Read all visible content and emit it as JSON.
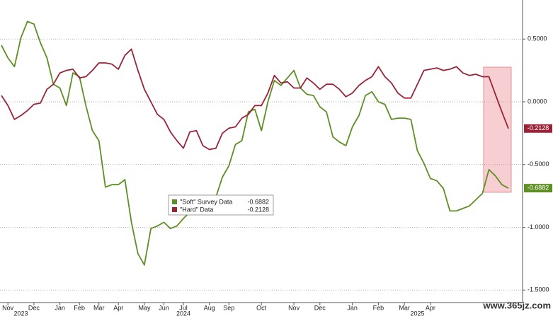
{
  "chart_data": {
    "type": "line",
    "categories": [
      null,
      "Nov",
      null,
      null,
      null,
      "Dec",
      null,
      null,
      null,
      "Jan",
      null,
      null,
      "Feb",
      null,
      null,
      "Mar",
      null,
      null,
      "Apr",
      null,
      null,
      null,
      "May",
      null,
      null,
      "Jun",
      null,
      null,
      "Jul",
      null,
      null,
      null,
      "Aug",
      null,
      null,
      "Sep",
      null,
      null,
      null,
      null,
      "Oct",
      null,
      null,
      null,
      null,
      "Nov",
      null,
      null,
      null,
      "Dec",
      null,
      null,
      null,
      null,
      "Jan",
      null,
      null,
      null,
      "Feb",
      null,
      null,
      null,
      "Mar",
      null,
      null,
      null,
      "Apr",
      null,
      null,
      null,
      null,
      null,
      null,
      null,
      null,
      null,
      null,
      null,
      null
    ],
    "x_group_labels": [
      "2023",
      "2024",
      "2025"
    ],
    "series": [
      {
        "name": "\"Soft\" Survey Data",
        "color": "#5e8f23",
        "values": [
          0.45,
          0.35,
          0.28,
          0.51,
          0.64,
          0.62,
          0.47,
          0.35,
          0.14,
          0.11,
          -0.03,
          0.23,
          0.2,
          -0.03,
          -0.23,
          -0.31,
          -0.68,
          -0.66,
          -0.66,
          -0.62,
          -0.96,
          -1.21,
          -1.3,
          -1.01,
          -0.99,
          -0.96,
          -1.01,
          -0.99,
          -0.93,
          -0.88,
          -0.87,
          -0.87,
          -0.83,
          -0.76,
          -0.6,
          -0.51,
          -0.34,
          -0.31,
          -0.08,
          -0.06,
          -0.23,
          0.0,
          0.17,
          0.13,
          0.19,
          0.25,
          0.11,
          0.06,
          0.05,
          -0.04,
          -0.08,
          -0.28,
          -0.32,
          -0.35,
          -0.2,
          -0.11,
          0.05,
          0.08,
          0.0,
          -0.02,
          -0.14,
          -0.13,
          -0.13,
          -0.14,
          -0.39,
          -0.49,
          -0.61,
          -0.63,
          -0.69,
          -0.87,
          -0.87,
          -0.85,
          -0.83,
          -0.78,
          -0.73,
          -0.54,
          -0.59,
          -0.66,
          -0.6882
        ]
      },
      {
        "name": "\"Hard\" Data",
        "color": "#9a2338",
        "values": [
          0.05,
          -0.03,
          -0.14,
          -0.11,
          -0.07,
          -0.02,
          -0.01,
          0.1,
          0.14,
          0.23,
          0.25,
          0.26,
          0.19,
          0.2,
          0.25,
          0.31,
          0.31,
          0.3,
          0.26,
          0.37,
          0.42,
          0.25,
          0.1,
          0.0,
          -0.1,
          -0.14,
          -0.24,
          -0.31,
          -0.37,
          -0.24,
          -0.23,
          -0.35,
          -0.38,
          -0.37,
          -0.25,
          -0.21,
          -0.2,
          -0.13,
          -0.1,
          -0.03,
          -0.03,
          0.07,
          0.21,
          0.15,
          0.16,
          0.11,
          0.11,
          0.19,
          0.15,
          0.1,
          0.14,
          0.14,
          0.1,
          0.04,
          0.07,
          0.13,
          0.17,
          0.2,
          0.28,
          0.2,
          0.15,
          0.07,
          0.03,
          0.03,
          0.14,
          0.25,
          0.26,
          0.27,
          0.25,
          0.26,
          0.28,
          0.23,
          0.21,
          0.22,
          0.2,
          0.2,
          0.06,
          -0.08,
          -0.2128
        ]
      }
    ],
    "ylim": [
      -1.6,
      0.8
    ],
    "yticks": [
      {
        "value": 0.5,
        "label": "0.5000"
      },
      {
        "value": 0,
        "label": "0.0000"
      },
      {
        "value": -0.5,
        "label": "-0.5000"
      },
      {
        "value": -1,
        "label": "-1.0000"
      },
      {
        "value": -1.5,
        "label": "-1.5000"
      }
    ],
    "grid": true,
    "watermark": "www.365jz.com"
  }
}
